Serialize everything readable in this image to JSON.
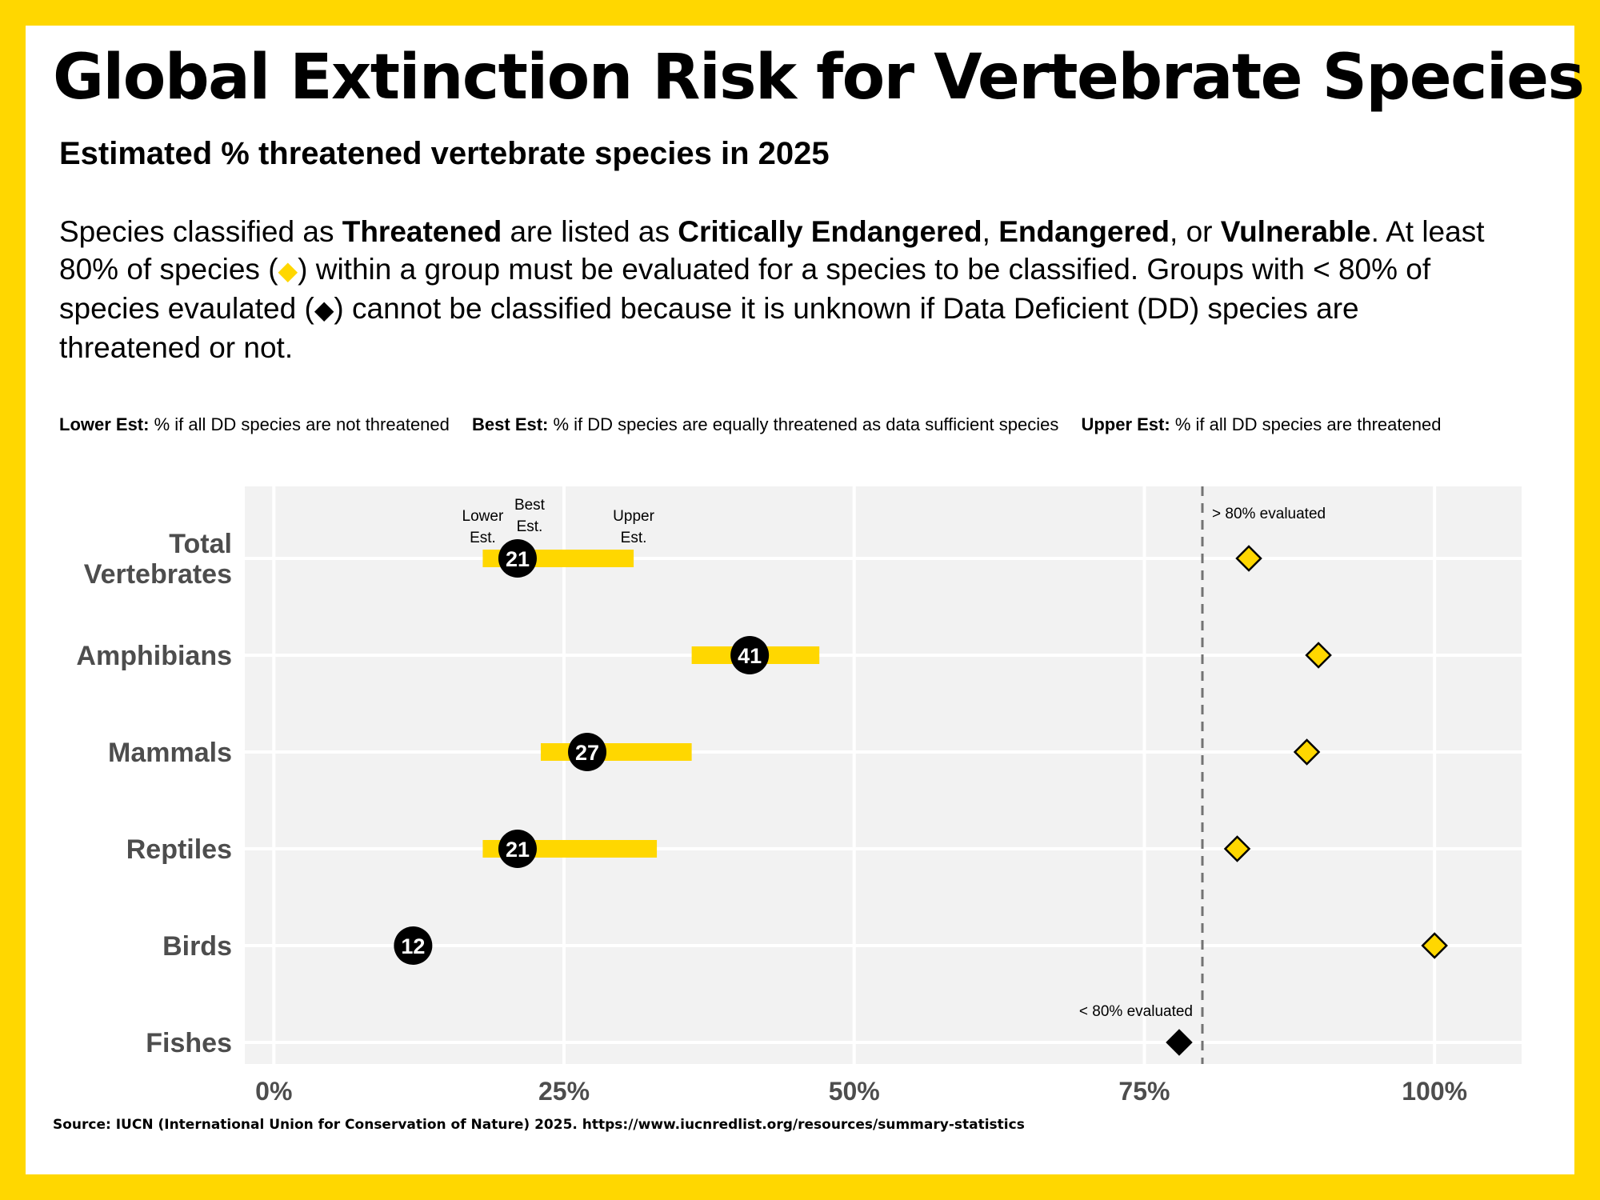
{
  "title": "Global Extinction Risk for Vertebrate Species",
  "subtitle": "Estimated % threatened vertebrate species in 2025",
  "description": {
    "p1": "Species classified as ",
    "b1": "Threatened",
    "p2": " are listed as ",
    "b2": "Critically Endangered",
    "p3": ", ",
    "b3": "Endangered",
    "p4": ", or ",
    "b4": "Vulnerable",
    "p5": ". At least 80% of species (",
    "p6": ") within a group must be evaluated for a species to be classified. Groups with < 80% of species evaulated (",
    "p7": ") cannot be classified because it is unknown if Data Deficient (DD) species are threatened or not."
  },
  "legend": {
    "lower_label": "Lower Est:",
    "lower_text": " % if all DD species are not threatened",
    "best_label": "Best Est:",
    "best_text": " % if DD species are equally threatened as data sufficient species",
    "upper_label": "Upper Est:",
    "upper_text": " % if all DD species are threatened"
  },
  "source": "Source: IUCN (International Union for Conservation of Nature) 2025. https://www.iucnredlist.org/resources/summary-statistics",
  "colors": {
    "accent": "#FFD700",
    "panel": "#F2F2F2",
    "grid": "#FFFFFF",
    "point": "#000000",
    "axis_text": "#4D4D4D",
    "threshold_line": "#737373"
  },
  "chart_data": {
    "type": "dot-range",
    "xlim": [
      -2.5,
      107.5
    ],
    "x_ticks": [
      0,
      25,
      50,
      75,
      100
    ],
    "x_tick_labels": [
      "0%",
      "25%",
      "50%",
      "75%",
      "100%"
    ],
    "threshold": 80,
    "threshold_labels": {
      "above": "> 80% evaluated",
      "below": "< 80% evaluated"
    },
    "range_annotations": {
      "lower": "Lower Est.",
      "best": "Best Est.",
      "upper": "Upper Est."
    },
    "groups": [
      {
        "category": "Total Vertebrates",
        "lines": [
          "Total",
          "Vertebrates"
        ],
        "lower": 18,
        "best": 21,
        "upper": 31,
        "best_label": "21",
        "pct_evaluated": 84,
        "classified": true
      },
      {
        "category": "Amphibians",
        "lines": [
          "Amphibians"
        ],
        "lower": 36,
        "best": 41,
        "upper": 47,
        "best_label": "41",
        "pct_evaluated": 90,
        "classified": true
      },
      {
        "category": "Mammals",
        "lines": [
          "Mammals"
        ],
        "lower": 23,
        "best": 27,
        "upper": 36,
        "best_label": "27",
        "pct_evaluated": 89,
        "classified": true
      },
      {
        "category": "Reptiles",
        "lines": [
          "Reptiles"
        ],
        "lower": 18,
        "best": 21,
        "upper": 33,
        "best_label": "21",
        "pct_evaluated": 83,
        "classified": true
      },
      {
        "category": "Birds",
        "lines": [
          "Birds"
        ],
        "lower": 12,
        "best": 12,
        "upper": 12,
        "best_label": "12",
        "pct_evaluated": 100,
        "classified": true
      },
      {
        "category": "Fishes",
        "lines": [
          "Fishes"
        ],
        "lower": null,
        "best": null,
        "upper": null,
        "best_label": "",
        "pct_evaluated": 78,
        "classified": false
      }
    ]
  }
}
